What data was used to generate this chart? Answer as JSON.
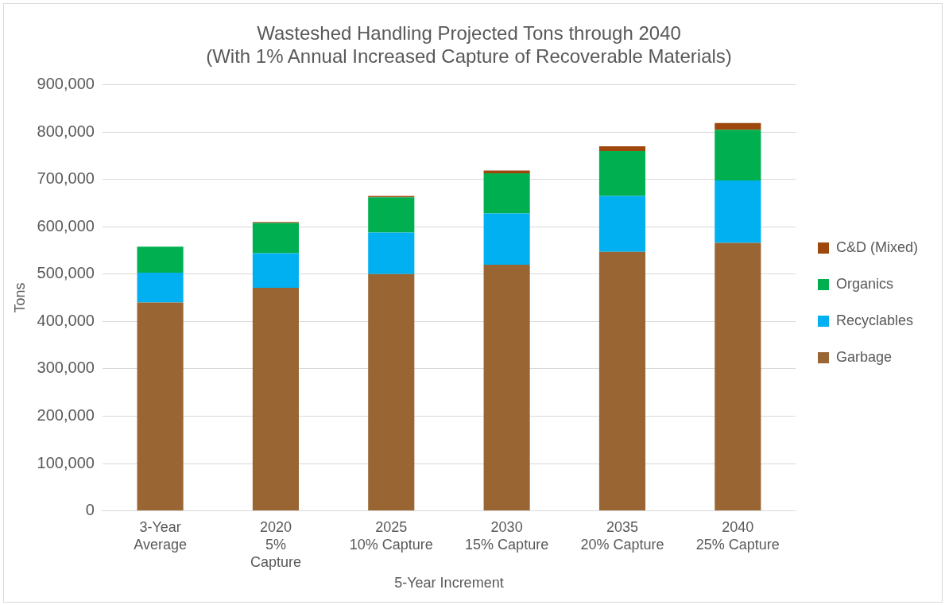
{
  "chart_data": {
    "type": "bar",
    "title": "Wasteshed Handling Projected Tons through 2040\n(With 1% Annual Increased Capture of Recoverable Materials)",
    "xlabel": "5-Year Increment",
    "ylabel": "Tons",
    "categories": [
      "3-Year\nAverage",
      "2020\n5%\nCapture",
      "2025\n10% Capture",
      "2030\n15% Capture",
      "2035\n20% Capture",
      "2040\n25% Capture"
    ],
    "series": [
      {
        "name": "Garbage",
        "color": "#996633",
        "values": [
          440000,
          471000,
          500000,
          520000,
          547000,
          566000
        ]
      },
      {
        "name": "Recyclables",
        "color": "#00b0f0",
        "values": [
          63000,
          73000,
          88000,
          108000,
          118000,
          132000
        ]
      },
      {
        "name": "Organics",
        "color": "#00b050",
        "values": [
          55000,
          64000,
          74000,
          85000,
          95000,
          107000
        ]
      },
      {
        "name": "C&D (Mixed)",
        "color": "#9e480e",
        "values": [
          0,
          2000,
          3000,
          6000,
          10000,
          14000
        ]
      }
    ],
    "stacked": true,
    "ylim": [
      0,
      900000
    ],
    "yticks": [
      0,
      {
        "value": 100000,
        "label": "100,000"
      },
      {
        "value": 200000,
        "label": "200,000"
      },
      {
        "value": 300000,
        "label": "300,000"
      },
      {
        "value": 400000,
        "label": "400,000"
      },
      {
        "value": 500000,
        "label": "500,000"
      },
      {
        "value": 600000,
        "label": "600,000"
      },
      {
        "value": 700000,
        "label": "700,000"
      },
      {
        "value": 800000,
        "label": "800,000"
      },
      {
        "value": 900000,
        "label": "900,000"
      }
    ],
    "grid": "y",
    "legend": "right"
  }
}
